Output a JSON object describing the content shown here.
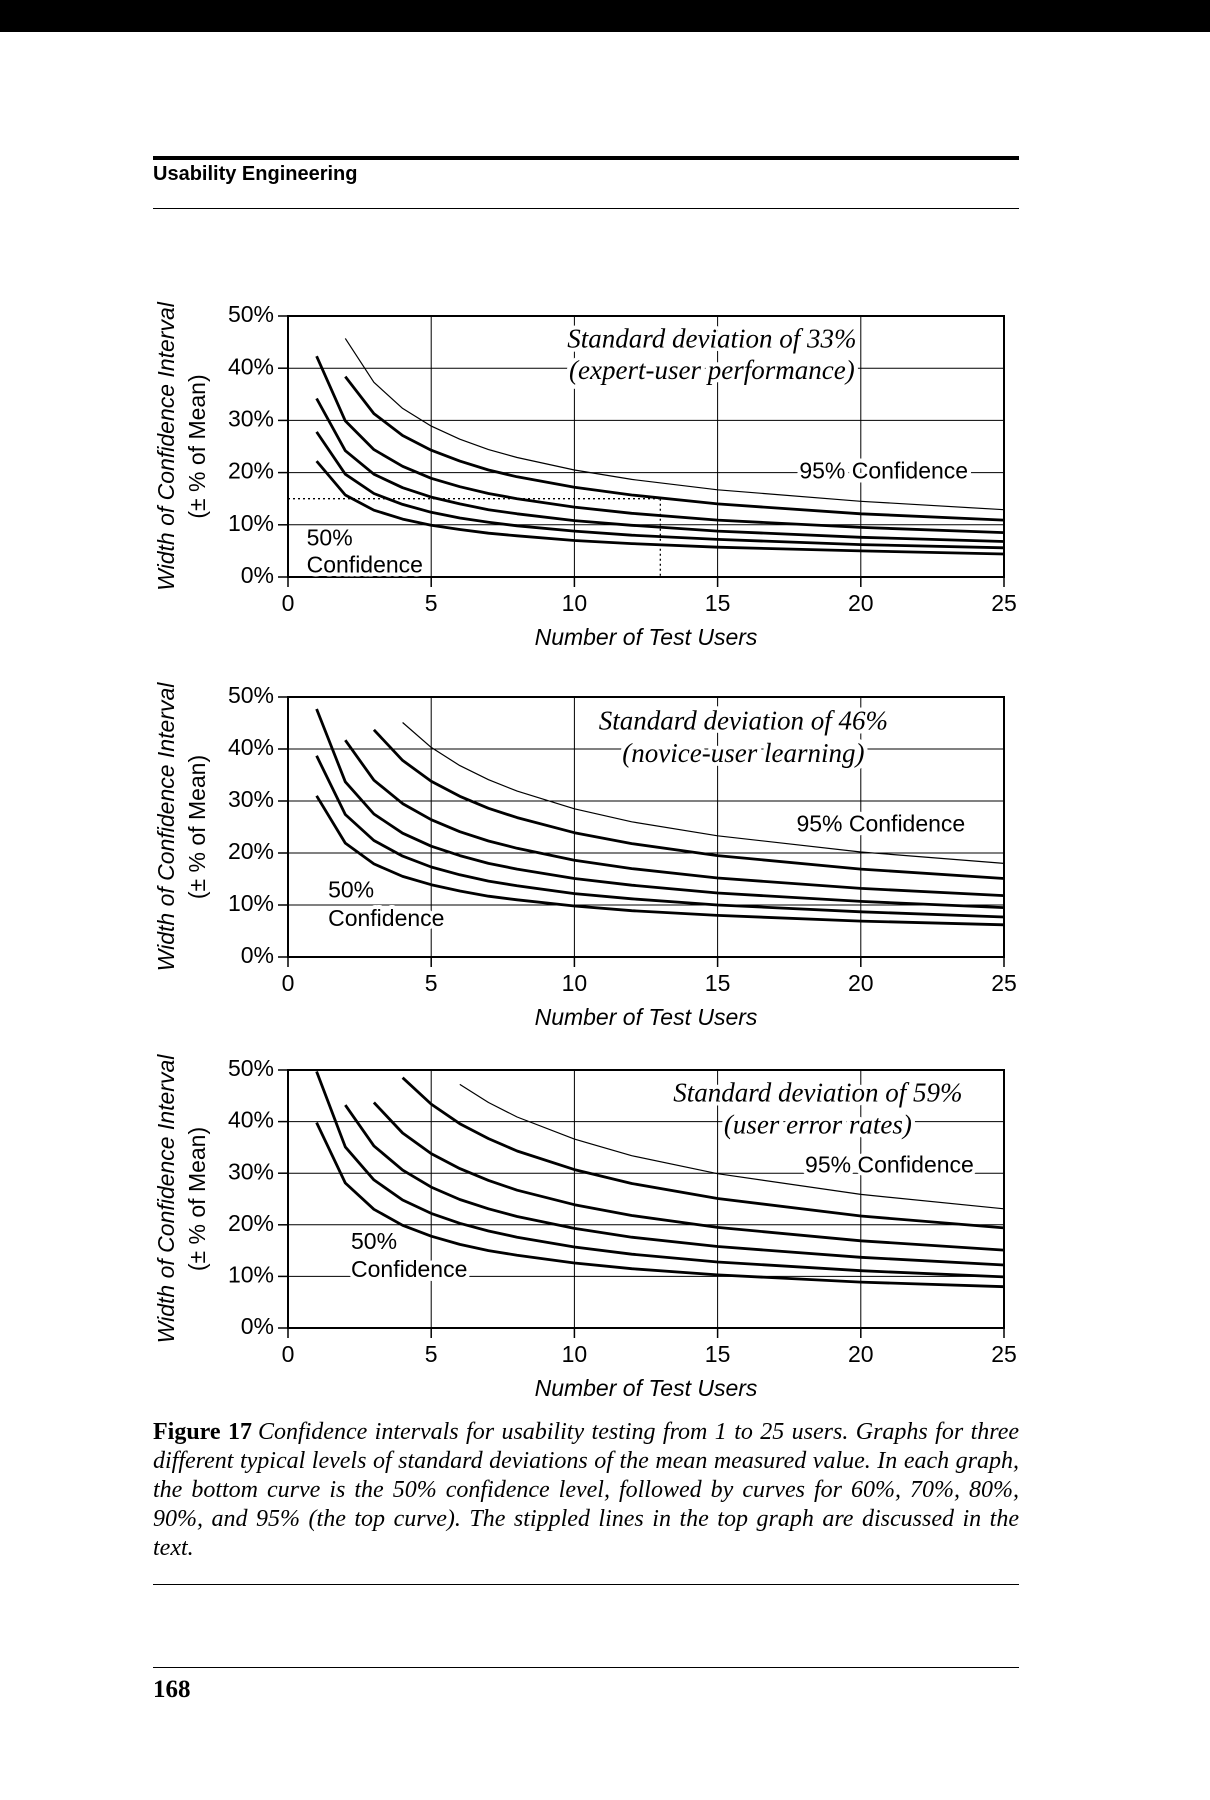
{
  "header": {
    "title": "Usability Engineering"
  },
  "chart_data": [
    {
      "type": "line",
      "x": [
        1,
        2,
        3,
        4,
        5,
        6,
        7,
        8,
        10,
        12,
        15,
        20,
        25
      ],
      "series": [
        {
          "color": "#000000",
          "values": [
            22.2,
            15.7,
            12.8,
            11.1,
            9.9,
            9.1,
            8.4,
            7.9,
            7.0,
            6.4,
            5.7,
            5.0,
            4.4
          ]
        },
        {
          "color": "#000000",
          "values": [
            27.8,
            19.7,
            16.0,
            13.9,
            12.4,
            11.3,
            10.5,
            9.8,
            8.8,
            8.0,
            7.2,
            6.2,
            5.6
          ]
        },
        {
          "color": "#000000",
          "values": [
            34.2,
            24.2,
            19.7,
            17.1,
            15.3,
            14.0,
            12.9,
            12.1,
            10.8,
            9.9,
            8.8,
            7.6,
            6.8
          ]
        },
        {
          "color": "#000000",
          "values": [
            42.3,
            29.9,
            24.4,
            21.2,
            18.9,
            17.3,
            16.0,
            15.0,
            13.4,
            12.2,
            10.9,
            9.5,
            8.5
          ]
        },
        {
          "color": "#000000",
          "values": [
            null,
            38.4,
            31.3,
            27.1,
            24.3,
            22.2,
            20.5,
            19.2,
            17.2,
            15.7,
            14.0,
            12.1,
            10.9
          ]
        },
        {
          "color": "#000000",
          "values": [
            null,
            45.7,
            37.3,
            32.3,
            28.9,
            26.4,
            24.4,
            22.9,
            20.5,
            18.7,
            16.7,
            14.5,
            12.9
          ]
        }
      ],
      "xlim": [
        0,
        25
      ],
      "ylim": [
        0,
        50
      ],
      "xticks": [
        0,
        5,
        10,
        15,
        20,
        25
      ],
      "yticks": [
        {
          "value": 0,
          "label": "0%"
        },
        {
          "value": 10,
          "label": "10%"
        },
        {
          "value": 20,
          "label": "20%"
        },
        {
          "value": 30,
          "label": "30%"
        },
        {
          "value": 40,
          "label": "40%"
        },
        {
          "value": 50,
          "label": "50%"
        }
      ],
      "grid": true,
      "x_label": "Number of Test Users",
      "y_label": [
        "Width of Confidence Interval",
        "(± % of Mean)"
      ],
      "annotations": [
        "Standard deviation of 33%",
        "(expert-user performance)",
        "95% Confidence",
        "50%",
        "Confidence"
      ],
      "marker": {
        "x": 13,
        "y": 15
      }
    },
    {
      "type": "line",
      "x": [
        1,
        2,
        3,
        4,
        5,
        6,
        7,
        8,
        10,
        12,
        15,
        20,
        25
      ],
      "series": [
        {
          "color": "#000000",
          "values": [
            31.0,
            21.9,
            17.9,
            15.5,
            13.9,
            12.7,
            11.7,
            11.0,
            9.8,
            8.9,
            8.0,
            6.9,
            6.2
          ]
        },
        {
          "color": "#000000",
          "values": [
            38.7,
            27.4,
            22.4,
            19.4,
            17.3,
            15.8,
            14.6,
            13.7,
            12.2,
            11.2,
            10.0,
            8.7,
            7.7
          ]
        },
        {
          "color": "#000000",
          "values": [
            47.7,
            33.7,
            27.5,
            23.8,
            21.3,
            19.5,
            18.0,
            16.9,
            15.1,
            13.8,
            12.3,
            10.7,
            9.5
          ]
        },
        {
          "color": "#000000",
          "values": [
            null,
            41.7,
            34.0,
            29.5,
            26.4,
            24.1,
            22.3,
            20.9,
            18.6,
            17.0,
            15.2,
            13.2,
            11.8
          ]
        },
        {
          "color": "#000000",
          "values": [
            null,
            null,
            43.7,
            37.8,
            33.8,
            30.9,
            28.6,
            26.8,
            23.9,
            21.8,
            19.5,
            16.9,
            15.1
          ]
        },
        {
          "color": "#000000",
          "values": [
            null,
            null,
            null,
            45.1,
            40.3,
            36.8,
            34.1,
            31.9,
            28.5,
            26.0,
            23.3,
            20.2,
            18.0
          ]
        }
      ],
      "xlim": [
        0,
        25
      ],
      "ylim": [
        0,
        50
      ],
      "xticks": [
        0,
        5,
        10,
        15,
        20,
        25
      ],
      "yticks": [
        {
          "value": 0,
          "label": "0%"
        },
        {
          "value": 10,
          "label": "10%"
        },
        {
          "value": 20,
          "label": "20%"
        },
        {
          "value": 30,
          "label": "30%"
        },
        {
          "value": 40,
          "label": "40%"
        },
        {
          "value": 50,
          "label": "50%"
        }
      ],
      "grid": true,
      "x_label": "Number of Test Users",
      "y_label": [
        "Width of Confidence Interval",
        "(± % of Mean)"
      ],
      "annotations": [
        "Standard deviation of 46%",
        "(novice-user learning)",
        "95% Confidence",
        "50%",
        "Confidence"
      ]
    },
    {
      "type": "line",
      "x": [
        1,
        2,
        3,
        4,
        5,
        6,
        7,
        8,
        10,
        12,
        15,
        20,
        25
      ],
      "series": [
        {
          "color": "#000000",
          "values": [
            39.8,
            28.1,
            23.0,
            19.9,
            17.8,
            16.2,
            15.0,
            14.1,
            12.6,
            11.5,
            10.3,
            8.9,
            8.0
          ]
        },
        {
          "color": "#000000",
          "values": [
            49.7,
            35.1,
            28.7,
            24.8,
            22.2,
            20.3,
            18.8,
            17.6,
            15.7,
            14.3,
            12.8,
            11.1,
            9.9
          ]
        },
        {
          "color": "#000000",
          "values": [
            null,
            43.2,
            35.3,
            30.6,
            27.3,
            24.9,
            23.1,
            21.6,
            19.3,
            17.6,
            15.8,
            13.7,
            12.2
          ]
        },
        {
          "color": "#000000",
          "values": [
            null,
            null,
            43.7,
            37.8,
            33.8,
            30.9,
            28.6,
            26.7,
            23.9,
            21.8,
            19.5,
            16.9,
            15.1
          ]
        },
        {
          "color": "#000000",
          "values": [
            null,
            null,
            null,
            48.5,
            43.4,
            39.6,
            36.7,
            34.3,
            30.7,
            28.0,
            25.1,
            21.7,
            19.4
          ]
        },
        {
          "color": "#000000",
          "values": [
            null,
            null,
            null,
            null,
            null,
            47.2,
            43.7,
            40.9,
            36.6,
            33.4,
            29.9,
            25.9,
            23.1
          ]
        }
      ],
      "xlim": [
        0,
        25
      ],
      "ylim": [
        0,
        50
      ],
      "xticks": [
        0,
        5,
        10,
        15,
        20,
        25
      ],
      "yticks": [
        {
          "value": 0,
          "label": "0%"
        },
        {
          "value": 10,
          "label": "10%"
        },
        {
          "value": 20,
          "label": "20%"
        },
        {
          "value": 30,
          "label": "30%"
        },
        {
          "value": 40,
          "label": "40%"
        },
        {
          "value": 50,
          "label": "50%"
        }
      ],
      "grid": true,
      "x_label": "Number of Test Users",
      "y_label": [
        "Width of Confidence Interval",
        "(± % of Mean)"
      ],
      "annotations": [
        "Standard deviation of 59%",
        "(user error rates)",
        "95% Confidence",
        "50%",
        "Confidence"
      ]
    }
  ],
  "caption": {
    "label": "Figure 17",
    "text": "Confidence intervals for usability testing from 1 to 25 users. Graphs for three different typical levels of standard deviations of the mean measured value. In each graph, the bottom curve is the 50% confidence level, followed by curves for 60%, 70%, 80%, 90%, and 95% (the top curve). The stippled lines in the top graph are discussed in the text."
  },
  "footer": {
    "page_number": "168"
  }
}
